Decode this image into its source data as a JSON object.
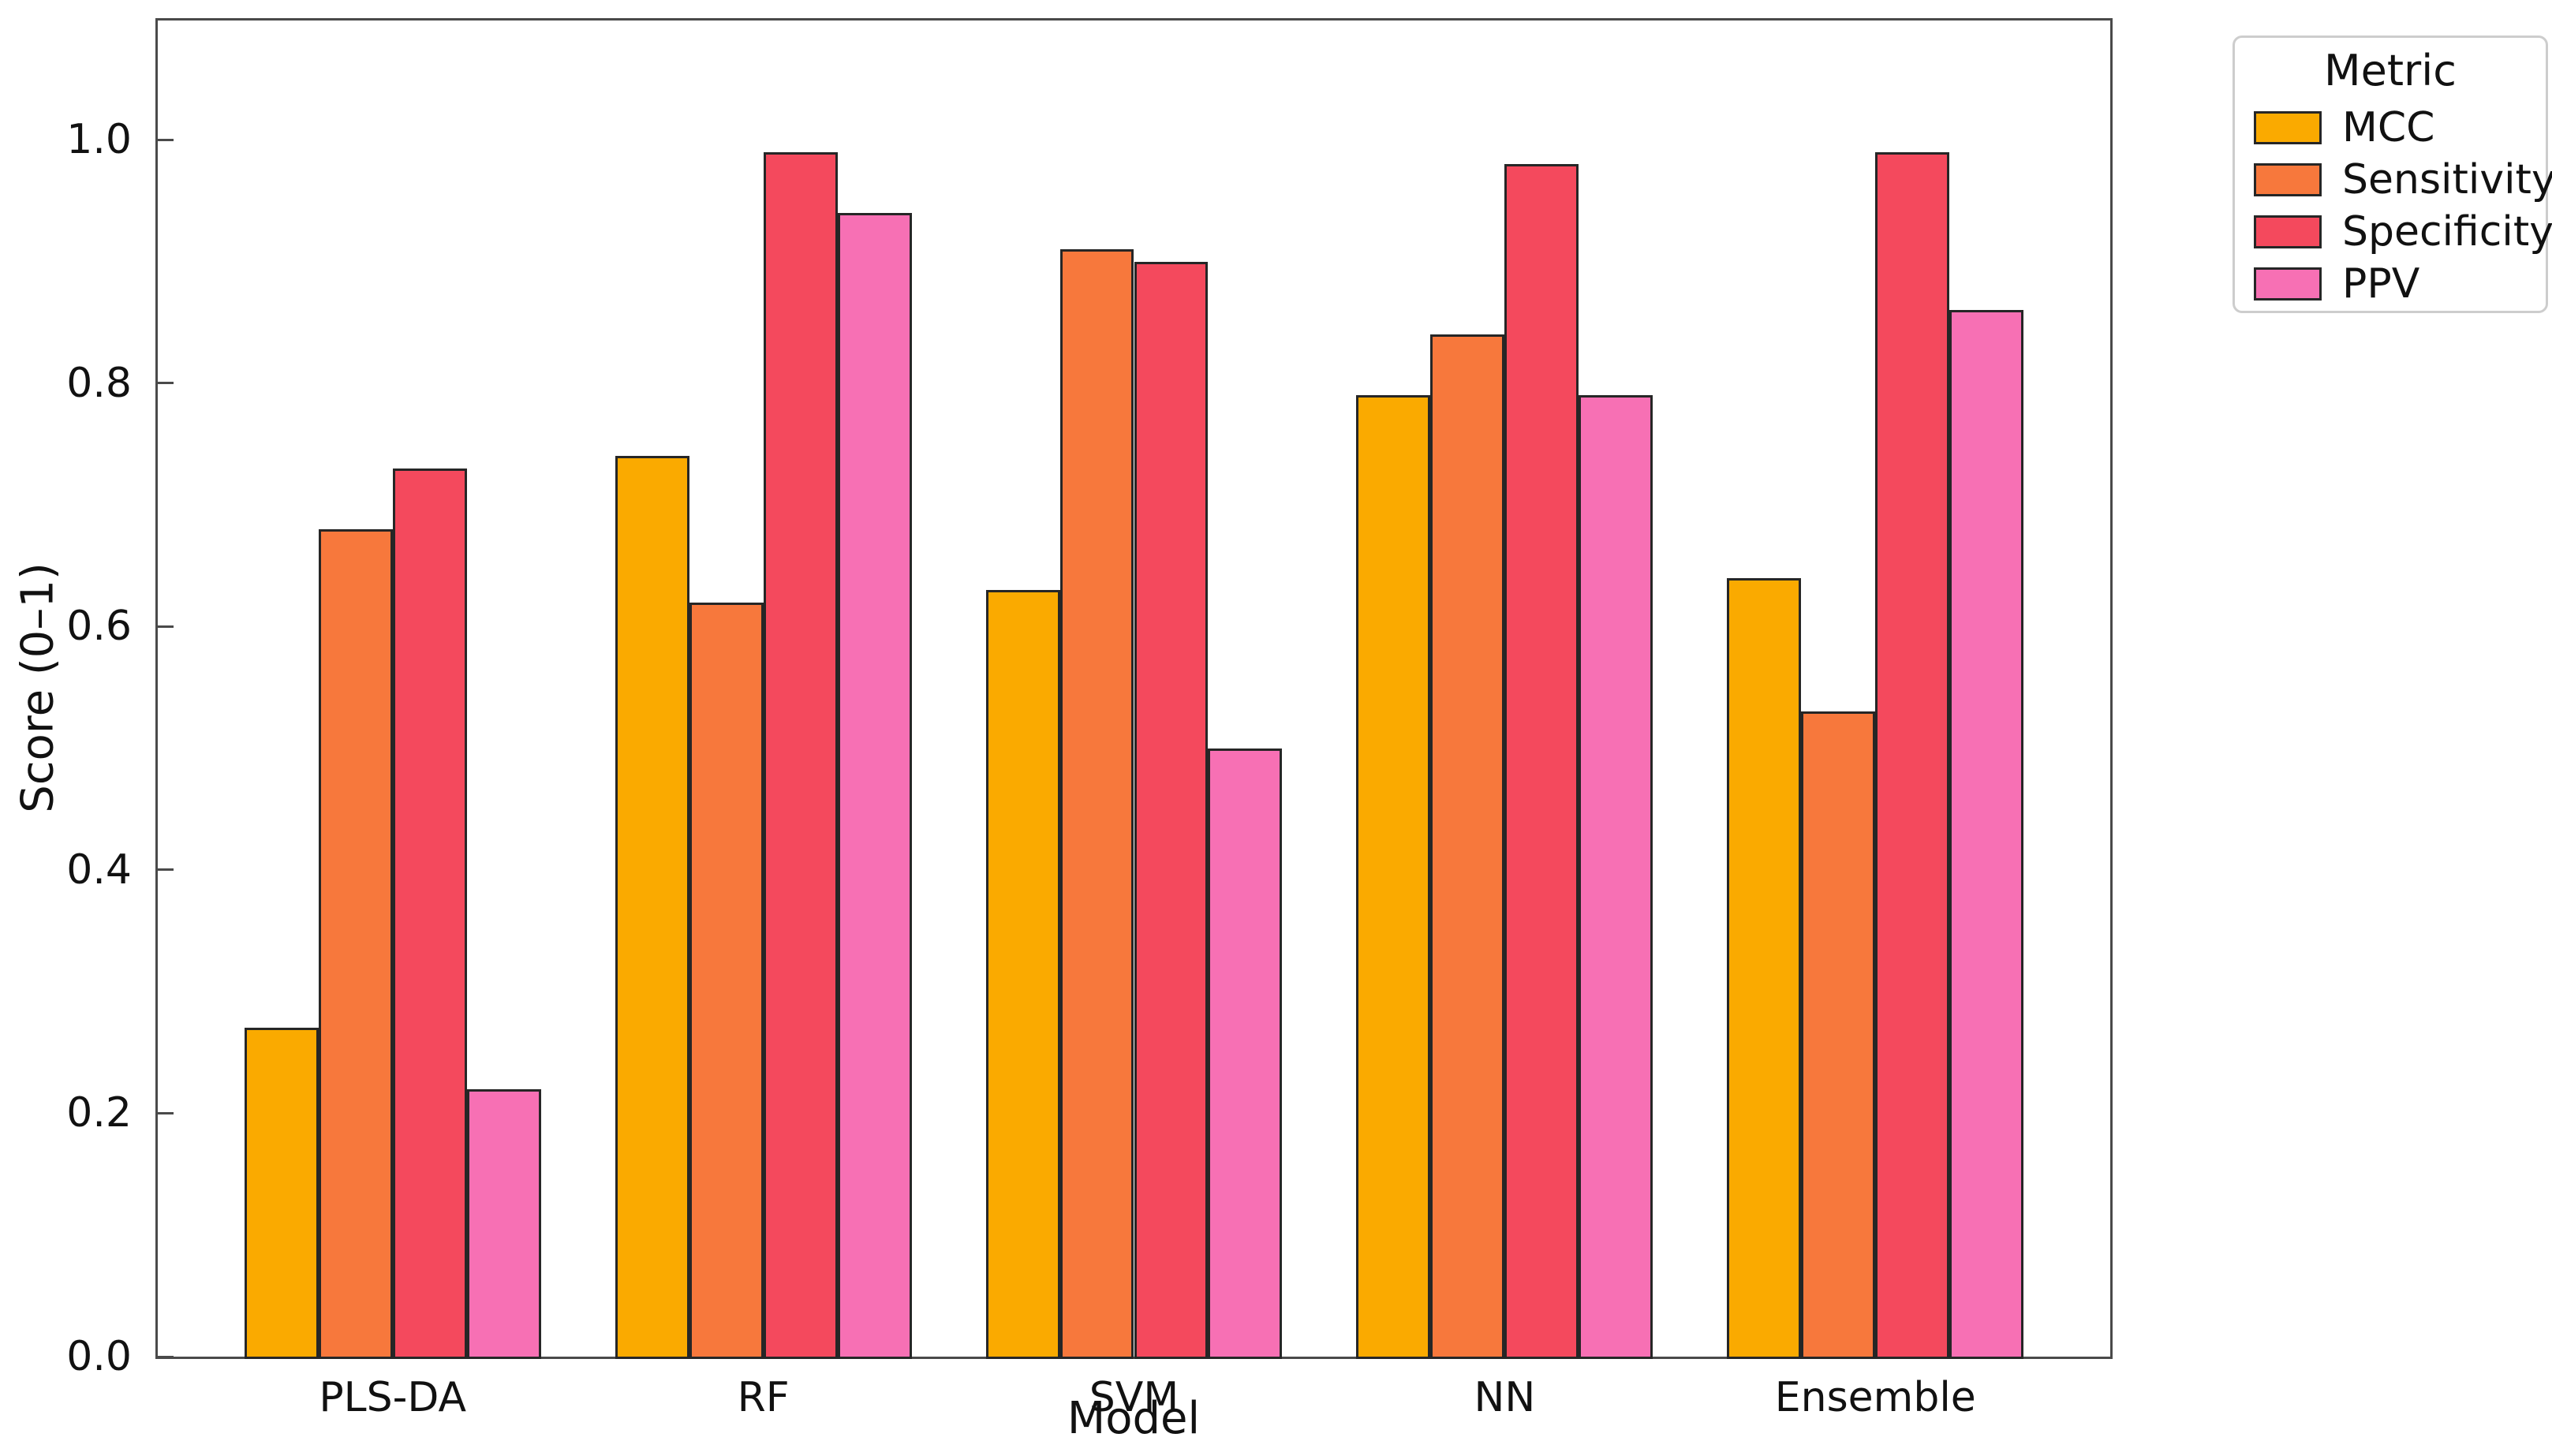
{
  "chart_data": {
    "type": "bar",
    "title": "",
    "xlabel": "Model",
    "ylabel": "Score (0–1)",
    "ylim": [
      0,
      1.1
    ],
    "xlim_units": [
      -0.64,
      4.64
    ],
    "yticks": [
      0.0,
      0.2,
      0.4,
      0.6,
      0.8,
      1.0
    ],
    "ytick_labels": [
      "0.0",
      "0.2",
      "0.4",
      "0.6",
      "0.8",
      "1.0"
    ],
    "grid": false,
    "bar_width_units": 0.2,
    "bar_edge_color": "#262626",
    "categories": [
      "PLS-DA",
      "RF",
      "SVM",
      "NN",
      "Ensemble"
    ],
    "series": [
      {
        "name": "MCC",
        "color": "#FAAA00",
        "values": [
          0.27,
          0.74,
          0.63,
          0.79,
          0.64
        ]
      },
      {
        "name": "Sensitivity",
        "color": "#F7783C",
        "values": [
          0.68,
          0.62,
          0.91,
          0.84,
          0.53
        ]
      },
      {
        "name": "Specificity",
        "color": "#F4495D",
        "values": [
          0.73,
          0.99,
          0.9,
          0.98,
          0.99
        ]
      },
      {
        "name": "PPV",
        "color": "#F770B4",
        "values": [
          0.22,
          0.94,
          0.5,
          0.79,
          0.86
        ]
      }
    ],
    "legend": {
      "title": "Metric",
      "position": "outside-top-right",
      "entries": [
        "MCC",
        "Sensitivity",
        "Specificity",
        "PPV"
      ]
    }
  }
}
